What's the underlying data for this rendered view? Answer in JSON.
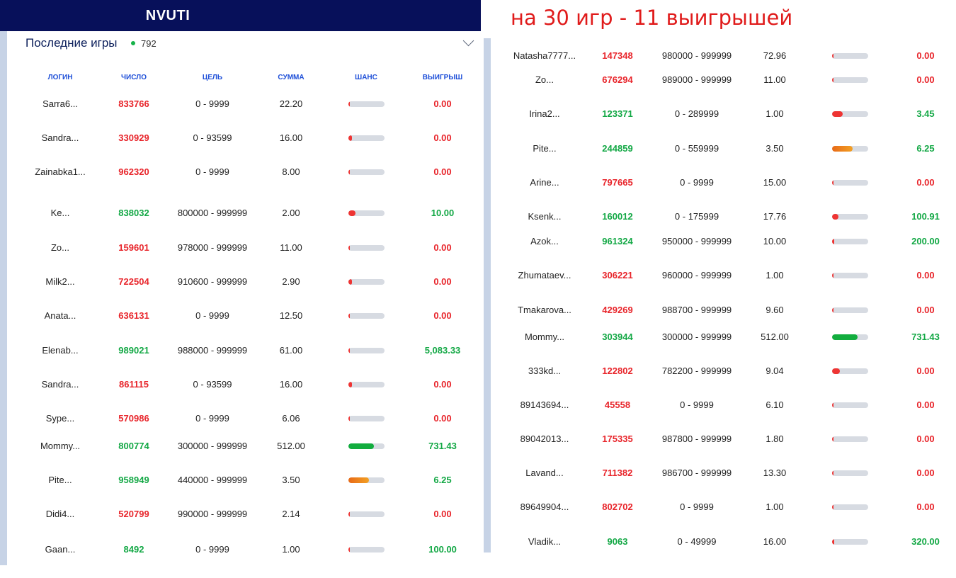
{
  "header": {
    "title": "NVUTI"
  },
  "panel": {
    "title": "Последние игры",
    "online_count": "792"
  },
  "overlay_text": "на 30 игр - 11 выигрышей",
  "columns": [
    "ЛОГИН",
    "ЧИСЛО",
    "ЦЕЛЬ",
    "СУММА",
    "ШАНС",
    "ВЫИГРЫШ"
  ],
  "left_games": [
    {
      "login": "Sarra6...",
      "number": "833766",
      "number_color": "red",
      "target": "0 - 9999",
      "amount": "22.20",
      "chance": 0.01,
      "chance_color": "red",
      "win": "0.00",
      "win_color": "red"
    },
    {
      "login": "Sandra...",
      "number": "330929",
      "number_color": "red",
      "target": "0 - 93599",
      "amount": "16.00",
      "chance": 0.09,
      "chance_color": "red",
      "win": "0.00",
      "win_color": "red"
    },
    {
      "login": "Zainabka1...",
      "number": "962320",
      "number_color": "red",
      "target": "0 - 9999",
      "amount": "8.00",
      "chance": 0.01,
      "chance_color": "red",
      "win": "0.00",
      "win_color": "red"
    },
    {
      "login": "Ke...",
      "number": "838032",
      "number_color": "green",
      "target": "800000 - 999999",
      "amount": "2.00",
      "chance": 0.2,
      "chance_color": "red",
      "win": "10.00",
      "win_color": "green"
    },
    {
      "login": "Zo...",
      "number": "159601",
      "number_color": "red",
      "target": "978000 - 999999",
      "amount": "11.00",
      "chance": 0.02,
      "chance_color": "red",
      "win": "0.00",
      "win_color": "red"
    },
    {
      "login": "Milk2...",
      "number": "722504",
      "number_color": "red",
      "target": "910600 - 999999",
      "amount": "2.90",
      "chance": 0.09,
      "chance_color": "red",
      "win": "0.00",
      "win_color": "red"
    },
    {
      "login": "Anata...",
      "number": "636131",
      "number_color": "red",
      "target": "0 - 9999",
      "amount": "12.50",
      "chance": 0.01,
      "chance_color": "red",
      "win": "0.00",
      "win_color": "red"
    },
    {
      "login": "Elenab...",
      "number": "989021",
      "number_color": "green",
      "target": "988000 - 999999",
      "amount": "61.00",
      "chance": 0.012,
      "chance_color": "red",
      "win": "5,083.33",
      "win_color": "green"
    },
    {
      "login": "Sandra...",
      "number": "861115",
      "number_color": "red",
      "target": "0 - 93599",
      "amount": "16.00",
      "chance": 0.09,
      "chance_color": "red",
      "win": "0.00",
      "win_color": "red"
    },
    {
      "login": "Sype...",
      "number": "570986",
      "number_color": "red",
      "target": "0 - 9999",
      "amount": "6.06",
      "chance": 0.01,
      "chance_color": "red",
      "win": "0.00",
      "win_color": "red"
    },
    {
      "login": "Mommy...",
      "number": "800774",
      "number_color": "green",
      "target": "300000 - 999999",
      "amount": "512.00",
      "chance": 0.7,
      "chance_color": "green",
      "win": "731.43",
      "win_color": "green"
    },
    {
      "login": "Pite...",
      "number": "958949",
      "number_color": "green",
      "target": "440000 - 999999",
      "amount": "3.50",
      "chance": 0.56,
      "chance_color": "orange",
      "win": "6.25",
      "win_color": "green"
    },
    {
      "login": "Didi4...",
      "number": "520799",
      "number_color": "red",
      "target": "990000 - 999999",
      "amount": "2.14",
      "chance": 0.01,
      "chance_color": "red",
      "win": "0.00",
      "win_color": "red"
    },
    {
      "login": "Gaan...",
      "number": "8492",
      "number_color": "green",
      "target": "0 - 9999",
      "amount": "1.00",
      "chance": 0.01,
      "chance_color": "red",
      "win": "100.00",
      "win_color": "green"
    }
  ],
  "right_games": [
    {
      "login": "Natasha7777...",
      "number": "147348",
      "number_color": "red",
      "target": "980000 - 999999",
      "amount": "72.96",
      "chance": 0.02,
      "chance_color": "red",
      "win": "0.00",
      "win_color": "red"
    },
    {
      "login": "Zo...",
      "number": "676294",
      "number_color": "red",
      "target": "989000 - 999999",
      "amount": "11.00",
      "chance": 0.011,
      "chance_color": "red",
      "win": "0.00",
      "win_color": "red"
    },
    {
      "login": "Irina2...",
      "number": "123371",
      "number_color": "green",
      "target": "0 - 289999",
      "amount": "1.00",
      "chance": 0.29,
      "chance_color": "red",
      "win": "3.45",
      "win_color": "green"
    },
    {
      "login": "Pite...",
      "number": "244859",
      "number_color": "green",
      "target": "0 - 559999",
      "amount": "3.50",
      "chance": 0.56,
      "chance_color": "orange",
      "win": "6.25",
      "win_color": "green"
    },
    {
      "login": "Arine...",
      "number": "797665",
      "number_color": "red",
      "target": "0 - 9999",
      "amount": "15.00",
      "chance": 0.01,
      "chance_color": "red",
      "win": "0.00",
      "win_color": "red"
    },
    {
      "login": "Ksenk...",
      "number": "160012",
      "number_color": "green",
      "target": "0 - 175999",
      "amount": "17.76",
      "chance": 0.176,
      "chance_color": "red",
      "win": "100.91",
      "win_color": "green"
    },
    {
      "login": "Azok...",
      "number": "961324",
      "number_color": "green",
      "target": "950000 - 999999",
      "amount": "10.00",
      "chance": 0.05,
      "chance_color": "red",
      "win": "200.00",
      "win_color": "green"
    },
    {
      "login": "Zhumataev...",
      "number": "306221",
      "number_color": "red",
      "target": "960000 - 999999",
      "amount": "1.00",
      "chance": 0.04,
      "chance_color": "red",
      "win": "0.00",
      "win_color": "red"
    },
    {
      "login": "Tmakarova...",
      "number": "429269",
      "number_color": "red",
      "target": "988700 - 999999",
      "amount": "9.60",
      "chance": 0.011,
      "chance_color": "red",
      "win": "0.00",
      "win_color": "red"
    },
    {
      "login": "Mommy...",
      "number": "303944",
      "number_color": "green",
      "target": "300000 - 999999",
      "amount": "512.00",
      "chance": 0.7,
      "chance_color": "green",
      "win": "731.43",
      "win_color": "green"
    },
    {
      "login": "333kd...",
      "number": "122802",
      "number_color": "red",
      "target": "782200 - 999999",
      "amount": "9.04",
      "chance": 0.218,
      "chance_color": "red",
      "win": "0.00",
      "win_color": "red"
    },
    {
      "login": "89143694...",
      "number": "45558",
      "number_color": "red",
      "target": "0 - 9999",
      "amount": "6.10",
      "chance": 0.01,
      "chance_color": "red",
      "win": "0.00",
      "win_color": "red"
    },
    {
      "login": "89042013...",
      "number": "175335",
      "number_color": "red",
      "target": "987800 - 999999",
      "amount": "1.80",
      "chance": 0.012,
      "chance_color": "red",
      "win": "0.00",
      "win_color": "red"
    },
    {
      "login": "Lavand...",
      "number": "711382",
      "number_color": "red",
      "target": "986700 - 999999",
      "amount": "13.30",
      "chance": 0.013,
      "chance_color": "red",
      "win": "0.00",
      "win_color": "red"
    },
    {
      "login": "89649904...",
      "number": "802702",
      "number_color": "red",
      "target": "0 - 9999",
      "amount": "1.00",
      "chance": 0.01,
      "chance_color": "red",
      "win": "0.00",
      "win_color": "red"
    },
    {
      "login": "Vladik...",
      "number": "9063",
      "number_color": "green",
      "target": "0 - 49999",
      "amount": "16.00",
      "chance": 0.05,
      "chance_color": "red",
      "win": "320.00",
      "win_color": "green"
    }
  ]
}
